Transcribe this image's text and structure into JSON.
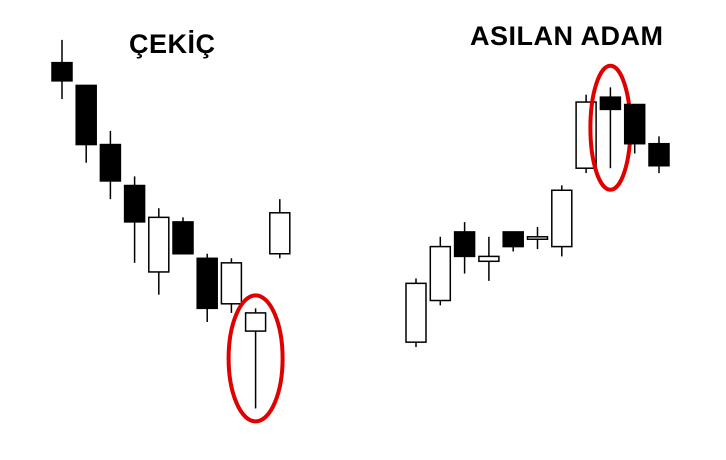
{
  "colors": {
    "bull_fill": "#ffffff",
    "bear_fill": "#000000",
    "stroke": "#000000",
    "highlight": "#e00000"
  },
  "chart_data": [
    {
      "type": "candlestick",
      "title": "ÇEKİÇ",
      "candles": [
        {
          "open": 38.5,
          "high": 41.0,
          "low": 34.5,
          "close": 36.5
        },
        {
          "open": 36.0,
          "high": 36.0,
          "low": 27.5,
          "close": 29.5
        },
        {
          "open": 29.5,
          "high": 31.0,
          "low": 23.5,
          "close": 25.5
        },
        {
          "open": 25.0,
          "high": 26.0,
          "low": 16.5,
          "close": 21.0
        },
        {
          "open": 15.5,
          "high": 22.5,
          "low": 13.0,
          "close": 21.5
        },
        {
          "open": 21.0,
          "high": 21.5,
          "low": 17.5,
          "close": 17.5
        },
        {
          "open": 17.0,
          "high": 17.5,
          "low": 10.0,
          "close": 11.5
        },
        {
          "open": 12.0,
          "high": 17.0,
          "low": 11.0,
          "close": 16.5
        },
        {
          "open": 9.0,
          "high": 11.5,
          "low": 0.5,
          "close": 11.0
        },
        {
          "open": 17.5,
          "high": 23.5,
          "low": 17.0,
          "close": 22.0
        }
      ],
      "highlight_index": 8
    },
    {
      "type": "candlestick",
      "title": "ASILAN ADAM",
      "candles": [
        {
          "open": 6.5,
          "high": 19.5,
          "low": 5.5,
          "close": 18.5
        },
        {
          "open": 15.0,
          "high": 28.0,
          "low": 14.0,
          "close": 26.0
        },
        {
          "open": 29.0,
          "high": 31.0,
          "low": 20.5,
          "close": 24.0
        },
        {
          "open": 23.0,
          "high": 28.0,
          "low": 19.0,
          "close": 24.0
        },
        {
          "open": 29.0,
          "high": 29.0,
          "low": 25.0,
          "close": 26.0
        },
        {
          "open": 27.5,
          "high": 30.0,
          "low": 25.5,
          "close": 28.0
        },
        {
          "open": 26.0,
          "high": 38.5,
          "low": 24.0,
          "close": 37.5
        },
        {
          "open": 42.0,
          "high": 57.0,
          "low": 41.0,
          "close": 55.5
        },
        {
          "open": 56.5,
          "high": 58.5,
          "low": 42.0,
          "close": 54.0
        },
        {
          "open": 55.0,
          "high": 55.0,
          "low": 45.0,
          "close": 47.0
        },
        {
          "open": 47.0,
          "high": 48.5,
          "low": 41.0,
          "close": 42.5
        }
      ],
      "highlight_index": 8
    }
  ]
}
